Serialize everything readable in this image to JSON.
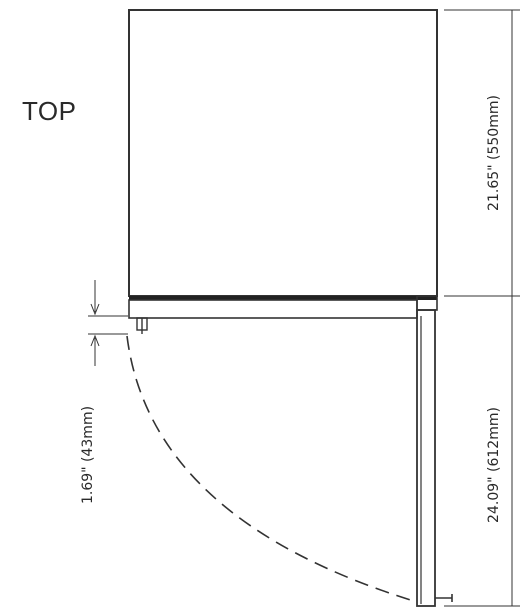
{
  "view": {
    "label": "TOP"
  },
  "dimensions": {
    "cabinet_depth": "21.65\" (550mm)",
    "door_depth": "24.09\" (612mm)",
    "door_offset": "1.69\" (43mm)"
  }
}
